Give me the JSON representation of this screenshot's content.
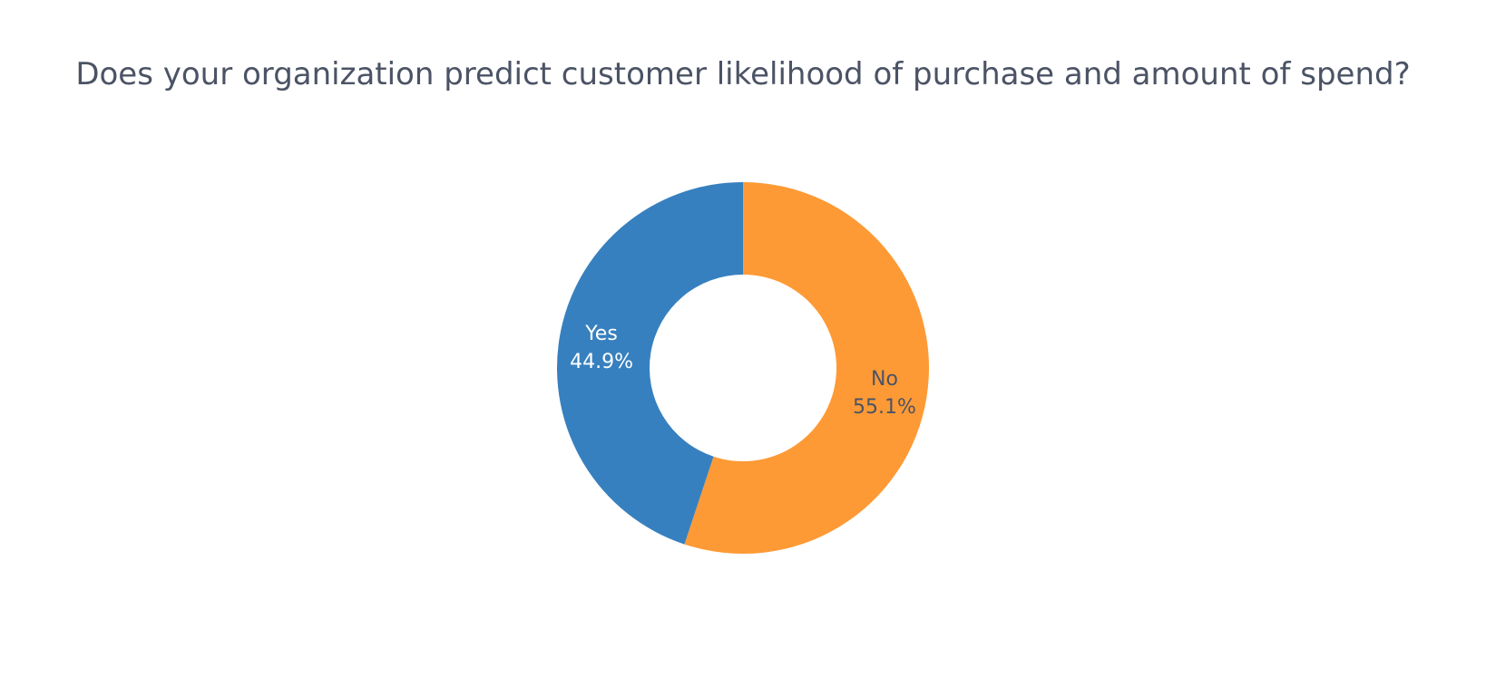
{
  "chart_data": {
    "type": "pie",
    "title": "Does your organization predict customer likelihood of purchase and amount of spend?",
    "hole": true,
    "slices": [
      {
        "label": "No",
        "value": 55.1,
        "percent_label": "55.1%",
        "color": "#fe9a35",
        "text_color": "#4b5365"
      },
      {
        "label": "Yes",
        "value": 44.9,
        "percent_label": "44.9%",
        "color": "#3780bf",
        "text_color": "#ffffff"
      }
    ]
  }
}
